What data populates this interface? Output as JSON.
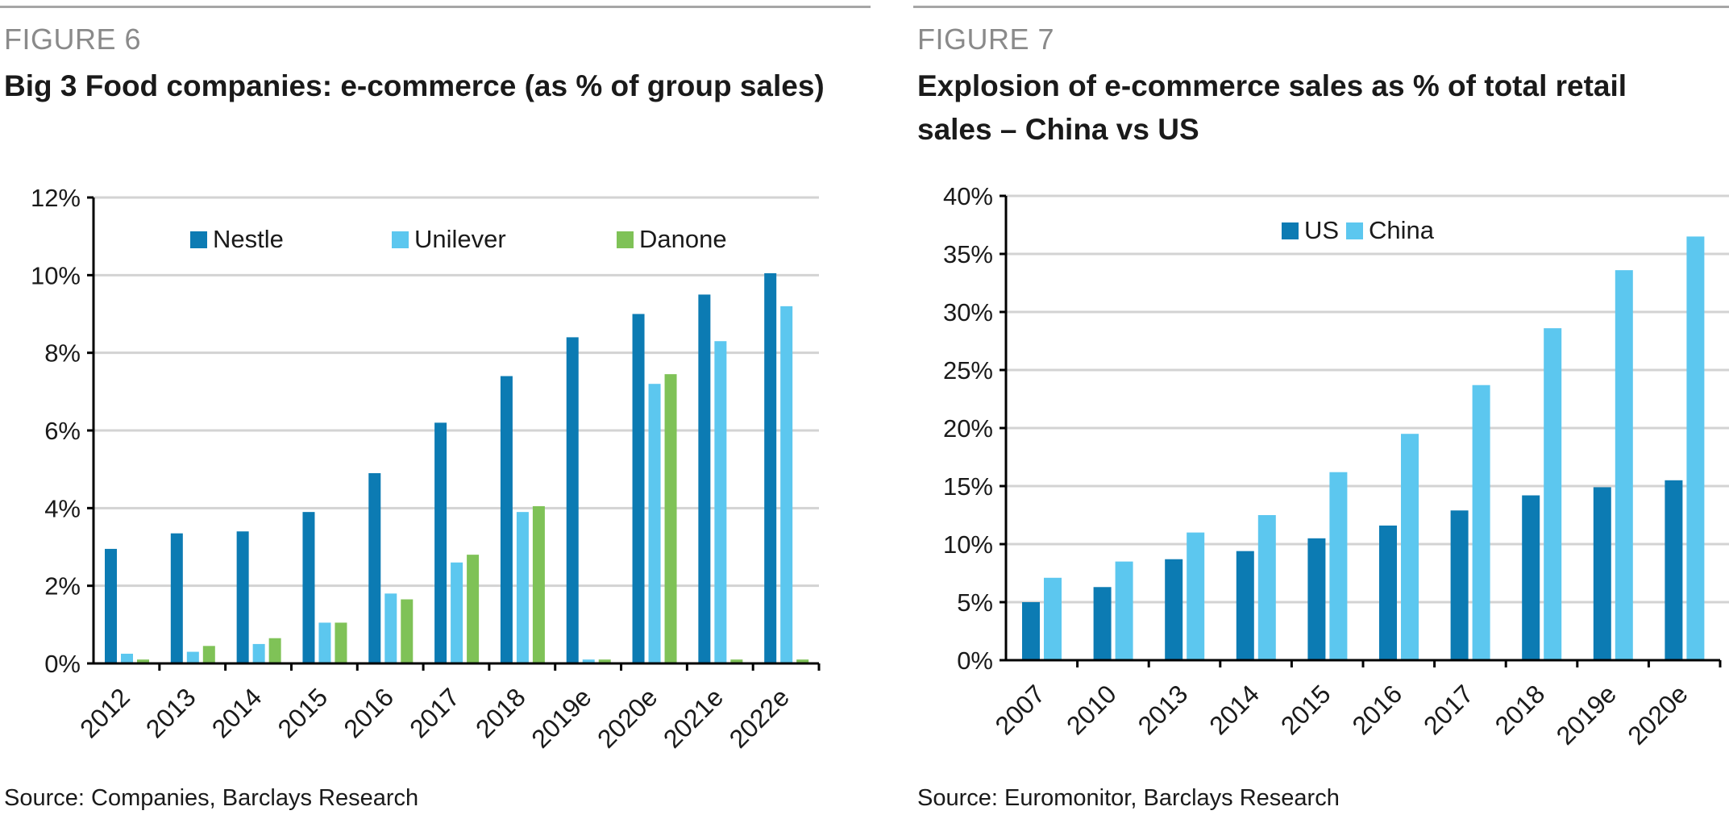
{
  "chart_data": [
    {
      "figure_label": "FIGURE 6",
      "title": "Big 3 Food companies: e-commerce (as % of group sales)",
      "source": "Source: Companies, Barclays Research",
      "type": "bar",
      "categories": [
        "2012",
        "2013",
        "2014",
        "2015",
        "2016",
        "2017",
        "2018",
        "2019e",
        "2020e",
        "2021e",
        "2022e"
      ],
      "series": [
        {
          "name": "Nestle",
          "color": "#0c7bb3",
          "values": [
            2.95,
            3.35,
            3.4,
            3.9,
            4.9,
            6.2,
            7.4,
            8.4,
            9.0,
            9.5,
            10.05
          ]
        },
        {
          "name": "Unilever",
          "color": "#5cc7ef",
          "values": [
            0.25,
            0.3,
            0.5,
            1.05,
            1.8,
            2.6,
            3.9,
            0.1,
            7.2,
            8.3,
            9.2
          ]
        },
        {
          "name": "Danone",
          "color": "#7fc257",
          "values": [
            0.1,
            0.45,
            0.65,
            1.05,
            1.65,
            2.8,
            4.05,
            0.1,
            7.45,
            0.1,
            0.1
          ]
        }
      ],
      "ylim": [
        0,
        12
      ],
      "yticks": [
        "0%",
        "2%",
        "4%",
        "6%",
        "8%",
        "10%",
        "12%"
      ],
      "grid": true,
      "legend_position": "top"
    },
    {
      "figure_label": "FIGURE 7",
      "title": "Explosion of e-commerce sales as % of total retail sales – China vs US",
      "source": "Source: Euromonitor, Barclays Research",
      "type": "bar",
      "categories": [
        "2007",
        "2010",
        "2013",
        "2014",
        "2015",
        "2016",
        "2017",
        "2018",
        "2019e",
        "2020e"
      ],
      "series": [
        {
          "name": "US",
          "color": "#0c7bb3",
          "values": [
            5.0,
            6.3,
            8.7,
            9.4,
            10.5,
            11.6,
            12.9,
            14.2,
            14.9,
            15.5
          ]
        },
        {
          "name": "China",
          "color": "#5cc7ef",
          "values": [
            7.1,
            8.5,
            11.0,
            12.5,
            16.2,
            19.5,
            23.7,
            28.6,
            33.6,
            36.5
          ]
        }
      ],
      "ylim": [
        0,
        40
      ],
      "yticks": [
        "0%",
        "5%",
        "10%",
        "15%",
        "20%",
        "25%",
        "30%",
        "35%",
        "40%"
      ],
      "grid": true,
      "legend_position": "top"
    }
  ]
}
